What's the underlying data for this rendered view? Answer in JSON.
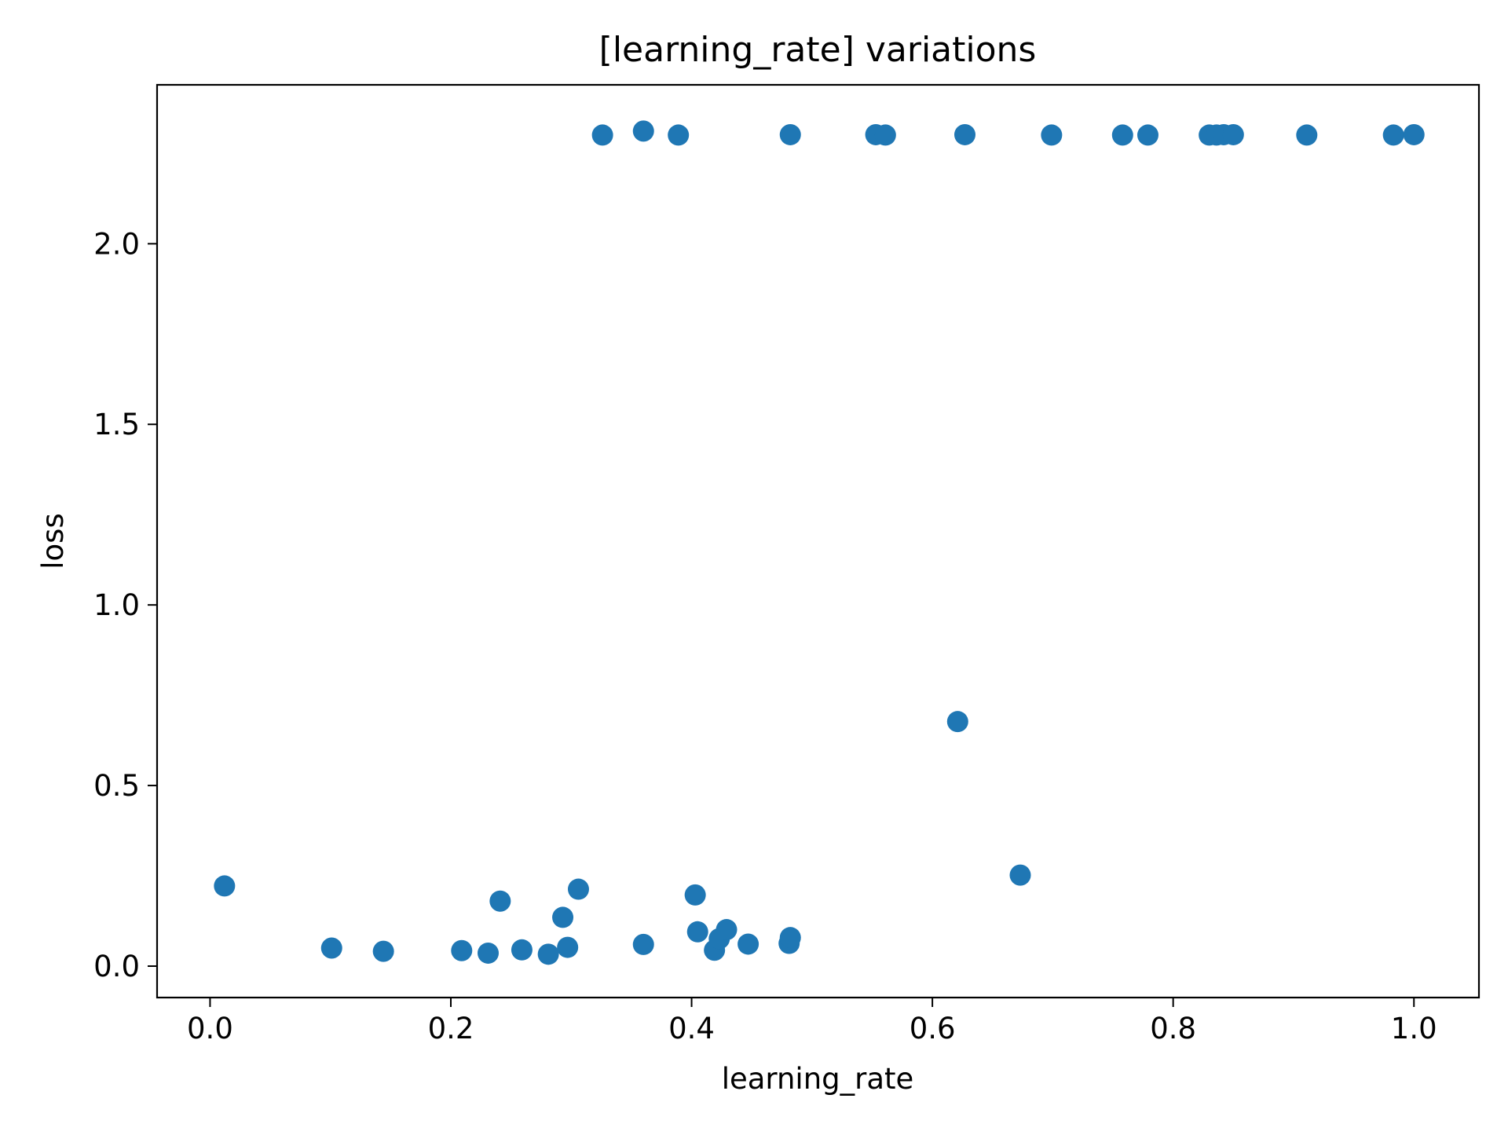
{
  "chart_data": {
    "type": "scatter",
    "title": "[learning_rate] variations",
    "xlabel": "learning_rate",
    "ylabel": "loss",
    "xlim": [
      -0.044,
      1.054
    ],
    "ylim": [
      -0.087,
      2.44
    ],
    "xticks": [
      0.0,
      0.2,
      0.4,
      0.6,
      0.8,
      1.0
    ],
    "xtick_labels": [
      "0.0",
      "0.2",
      "0.4",
      "0.6",
      "0.8",
      "1.0"
    ],
    "yticks": [
      0.0,
      0.5,
      1.0,
      1.5,
      2.0
    ],
    "ytick_labels": [
      "0.0",
      "0.5",
      "1.0",
      "1.5",
      "2.0"
    ],
    "grid": false,
    "marker_color": "#1f77b4",
    "series": [
      {
        "points": [
          {
            "x": 0.012,
            "y": 0.222
          },
          {
            "x": 0.101,
            "y": 0.05
          },
          {
            "x": 0.144,
            "y": 0.041
          },
          {
            "x": 0.209,
            "y": 0.043
          },
          {
            "x": 0.231,
            "y": 0.036
          },
          {
            "x": 0.241,
            "y": 0.18
          },
          {
            "x": 0.259,
            "y": 0.045
          },
          {
            "x": 0.281,
            "y": 0.033
          },
          {
            "x": 0.293,
            "y": 0.135
          },
          {
            "x": 0.297,
            "y": 0.052
          },
          {
            "x": 0.306,
            "y": 0.213
          },
          {
            "x": 0.326,
            "y": 2.301
          },
          {
            "x": 0.36,
            "y": 0.06
          },
          {
            "x": 0.36,
            "y": 2.312
          },
          {
            "x": 0.389,
            "y": 2.301
          },
          {
            "x": 0.403,
            "y": 0.197
          },
          {
            "x": 0.405,
            "y": 0.095
          },
          {
            "x": 0.419,
            "y": 0.044
          },
          {
            "x": 0.423,
            "y": 0.076
          },
          {
            "x": 0.429,
            "y": 0.101
          },
          {
            "x": 0.447,
            "y": 0.061
          },
          {
            "x": 0.481,
            "y": 0.063
          },
          {
            "x": 0.482,
            "y": 0.079
          },
          {
            "x": 0.482,
            "y": 2.302
          },
          {
            "x": 0.553,
            "y": 2.302
          },
          {
            "x": 0.561,
            "y": 2.301
          },
          {
            "x": 0.621,
            "y": 0.677
          },
          {
            "x": 0.627,
            "y": 2.302
          },
          {
            "x": 0.673,
            "y": 0.252
          },
          {
            "x": 0.699,
            "y": 2.301
          },
          {
            "x": 0.758,
            "y": 2.301
          },
          {
            "x": 0.779,
            "y": 2.301
          },
          {
            "x": 0.83,
            "y": 2.301
          },
          {
            "x": 0.836,
            "y": 2.301
          },
          {
            "x": 0.842,
            "y": 2.302
          },
          {
            "x": 0.85,
            "y": 2.302
          },
          {
            "x": 0.911,
            "y": 2.301
          },
          {
            "x": 0.983,
            "y": 2.301
          },
          {
            "x": 1.0,
            "y": 2.302
          }
        ]
      }
    ]
  }
}
